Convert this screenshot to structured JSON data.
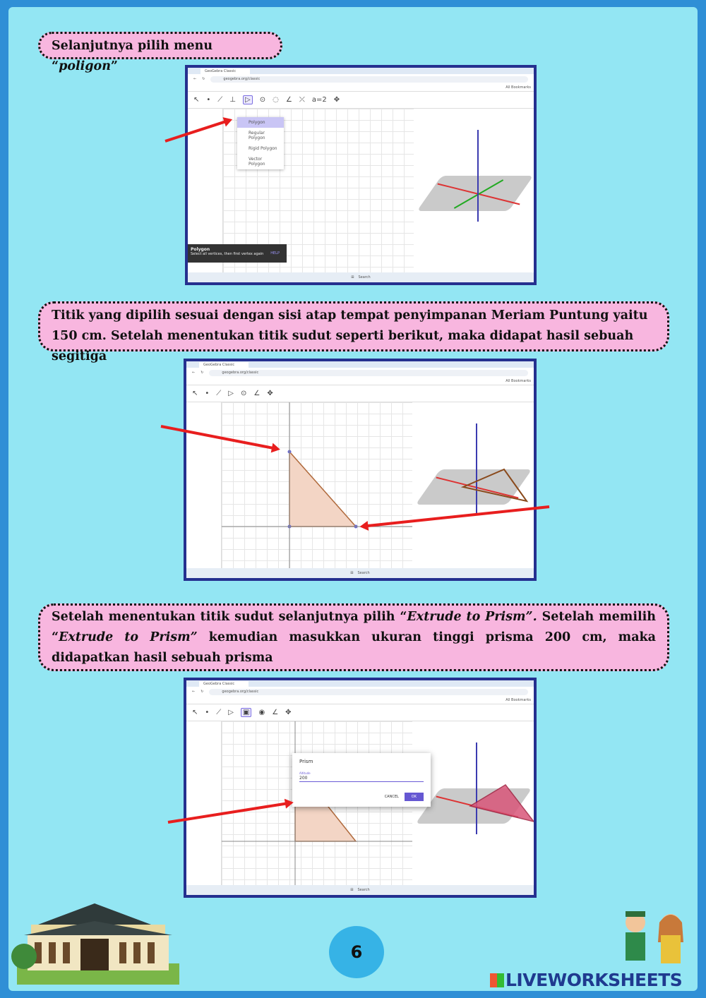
{
  "steps": [
    {
      "text_before": "Selanjutnya pilih menu “",
      "italic": "poligon",
      "text_after": "”"
    },
    {
      "text": "Titik yang dipilih sesuai dengan sisi atap tempat penyimpanan Meriam Puntung yaitu 150 cm. Setelah menentukan titik sudut seperti berikut, maka didapat hasil sebuah segitiga"
    },
    {
      "p1": "Setelah menentukan titik sudut selanjutnya pilih “",
      "i1": "Extrude to Prism”.",
      "p2": " Setelah memilih “",
      "i2": "Extrude to Prism”",
      "p3": " kemudian masukkan ukuran tinggi prisma 200 cm,  maka didapatkan hasil sebuah prisma"
    }
  ],
  "browser": {
    "tab": "GeoGebra Classic",
    "url": "geogebra.org/classic",
    "bookmarks": "All Bookmarks",
    "search": "Search"
  },
  "polygon_menu": [
    "Polygon",
    "Regular Polygon",
    "Rigid Polygon",
    "Vector Polygon"
  ],
  "tooltip": {
    "title": "Polygon",
    "desc": "Select all vertices, then first vertex again",
    "help": "HELP"
  },
  "prism_dialog": {
    "title": "Prism",
    "label": "Altitude",
    "value": "200",
    "cancel": "CANCEL",
    "ok": "OK"
  },
  "page_number": "6",
  "brand": "LIVEWORKSHEETS",
  "colors": {
    "background": "#93e6f3",
    "callout": "#f8b6df",
    "frame": "#25308f",
    "arrow": "#e81e1e"
  }
}
